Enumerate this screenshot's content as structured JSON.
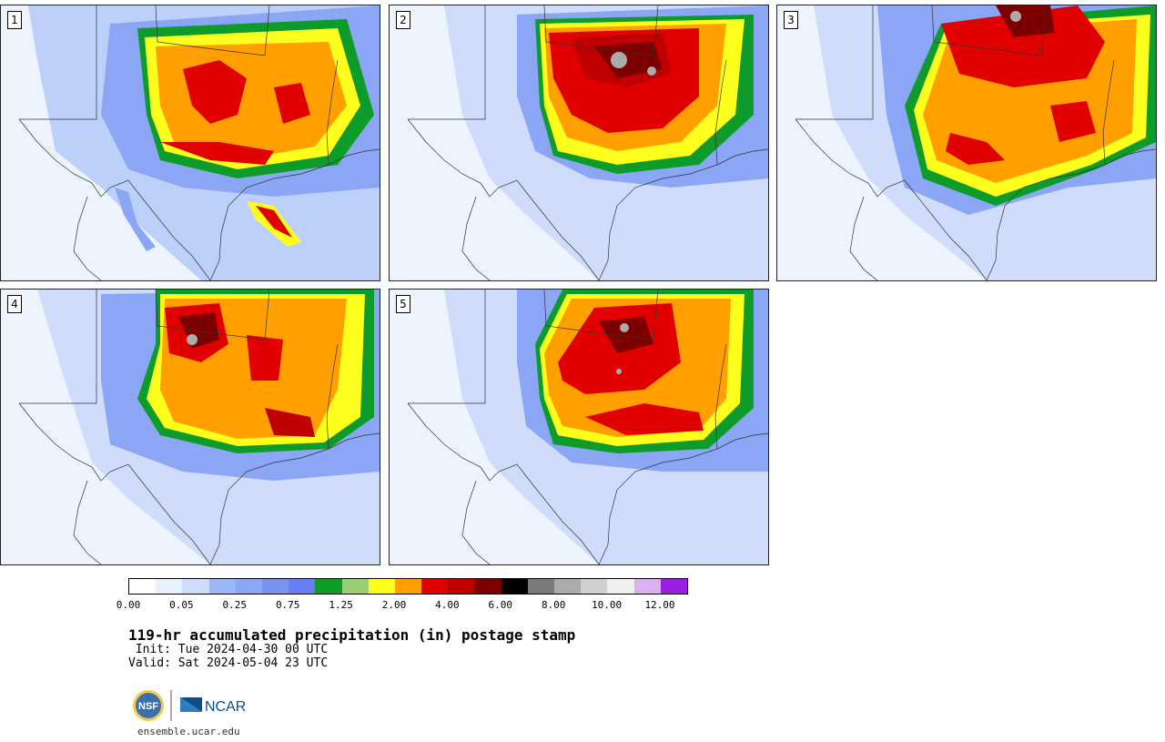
{
  "panels": [
    {
      "label": "1"
    },
    {
      "label": "2"
    },
    {
      "label": "3"
    },
    {
      "label": "4"
    },
    {
      "label": "5"
    }
  ],
  "colorbar": {
    "colors": [
      "#ffffff",
      "#e8f1fe",
      "#cfdcfb",
      "#9cb7f6",
      "#8aa6f4",
      "#7b93f0",
      "#6a7df0",
      "#0d9c29",
      "#9bce74",
      "#ffff1e",
      "#ff9f00",
      "#e10000",
      "#c00000",
      "#7d0000",
      "#000000",
      "#7a7a7a",
      "#ababab",
      "#cfcfcf",
      "#efefef",
      "#dcb0f2",
      "#9a1fe0"
    ],
    "tick_labels": [
      "0.00",
      "0.05",
      "0.25",
      "0.75",
      "1.25",
      "2.00",
      "4.00",
      "6.00",
      "8.00",
      "10.00",
      "12.00"
    ]
  },
  "title": "119-hr accumulated precipitation (in) postage stamp",
  "init": " Init: Tue 2024-04-30 00 UTC",
  "valid": "Valid: Sat 2024-05-04 23 UTC",
  "logos": {
    "left": "NSF",
    "right": "NCAR"
  },
  "url": "ensemble.ucar.edu"
}
